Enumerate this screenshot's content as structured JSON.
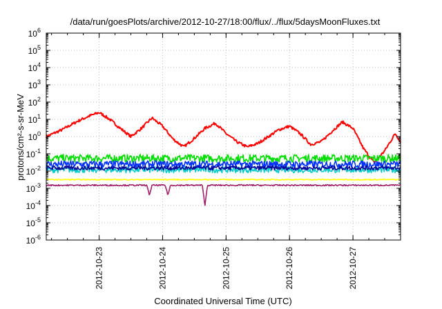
{
  "chart_data": {
    "type": "line",
    "title": "/data/run/goesPlots/archive/2012-10-27/18:00/flux/../flux/5daysMoonFluxes.txt",
    "xlabel": "Coordinated Universal Time (UTC)",
    "ylabel": "protons/cm²-s-sr-MeV",
    "y_scale": "log",
    "ylim": [
      1e-06,
      1000000.0
    ],
    "xlim": [
      "2012-10-22T04:00",
      "2012-10-27T18:00"
    ],
    "x_ticks": [
      "2012-10-23",
      "2012-10-24",
      "2012-10-25",
      "2012-10-26",
      "2012-10-27"
    ],
    "y_ticks": [
      {
        "base": "10",
        "exp": "-6"
      },
      {
        "base": "10",
        "exp": "-5"
      },
      {
        "base": "10",
        "exp": "-4"
      },
      {
        "base": "10",
        "exp": "-3"
      },
      {
        "base": "10",
        "exp": "-2"
      },
      {
        "base": "10",
        "exp": "-1"
      },
      {
        "base": "10",
        "exp": "0"
      },
      {
        "base": "10",
        "exp": "1"
      },
      {
        "base": "10",
        "exp": "2"
      },
      {
        "base": "10",
        "exp": "3"
      },
      {
        "base": "10",
        "exp": "4"
      },
      {
        "base": "10",
        "exp": "5"
      },
      {
        "base": "10",
        "exp": "6"
      }
    ],
    "grid": true,
    "legend": "none",
    "series": [
      {
        "color": "#ff0000",
        "x": [
          "2012-10-22T04:00",
          "2012-10-22T10:00",
          "2012-10-22T16:00",
          "2012-10-22T20:00",
          "2012-10-23T00:00",
          "2012-10-23T04:00",
          "2012-10-23T08:00",
          "2012-10-23T12:00",
          "2012-10-23T16:00",
          "2012-10-23T20:00",
          "2012-10-24T00:00",
          "2012-10-24T04:00",
          "2012-10-24T08:00",
          "2012-10-24T12:00",
          "2012-10-24T16:00",
          "2012-10-24T20:00",
          "2012-10-25T00:00",
          "2012-10-25T04:00",
          "2012-10-25T08:00",
          "2012-10-25T12:00",
          "2012-10-25T16:00",
          "2012-10-25T20:00",
          "2012-10-26T00:00",
          "2012-10-26T04:00",
          "2012-10-26T08:00",
          "2012-10-26T12:00",
          "2012-10-26T16:00",
          "2012-10-26T20:00",
          "2012-10-27T00:00",
          "2012-10-27T04:00",
          "2012-10-27T08:00",
          "2012-10-27T12:00",
          "2012-10-27T16:00",
          "2012-10-27T18:00"
        ],
        "y": [
          1.0,
          2.5,
          8,
          15,
          25,
          10,
          3,
          1.0,
          3,
          12,
          4,
          0.7,
          0.25,
          0.8,
          3,
          6,
          1.5,
          0.5,
          0.25,
          0.4,
          1.0,
          2.5,
          4,
          1.5,
          0.35,
          0.5,
          2,
          7,
          3,
          0.2,
          0.03,
          0.15,
          1.5,
          0.5
        ],
        "noise": 0.08
      },
      {
        "color": "#00dd00",
        "x": [
          "2012-10-22T04:00",
          "2012-10-27T18:00"
        ],
        "y": [
          0.055,
          0.055
        ],
        "noise": 0.22
      },
      {
        "color": "#00cccc",
        "x": [
          "2012-10-22T04:00",
          "2012-10-27T18:00"
        ],
        "y": [
          0.012,
          0.012
        ],
        "noise": 0.18
      },
      {
        "color": "#0033ff",
        "x": [
          "2012-10-22T04:00",
          "2012-10-27T18:00"
        ],
        "y": [
          0.025,
          0.025
        ],
        "noise": 0.2
      },
      {
        "color": "#000099",
        "x": [
          "2012-10-22T04:00",
          "2012-10-27T18:00"
        ],
        "y": [
          0.015,
          0.015
        ],
        "noise": 0.12
      },
      {
        "color": "#ffff00",
        "x": [
          "2012-10-22T04:00",
          "2012-10-27T18:00"
        ],
        "y": [
          0.0032,
          0.0032
        ],
        "noise": 0.03
      },
      {
        "color": "#a0206a",
        "x": [
          "2012-10-22T04:00",
          "2012-10-23T18:00",
          "2012-10-23T19:00",
          "2012-10-23T20:00",
          "2012-10-24T01:00",
          "2012-10-24T02:00",
          "2012-10-24T03:00",
          "2012-10-24T15:00",
          "2012-10-24T16:00",
          "2012-10-24T17:00",
          "2012-10-27T18:00"
        ],
        "y": [
          0.0015,
          0.0015,
          0.0004,
          0.0015,
          0.0015,
          0.0004,
          0.0015,
          0.0015,
          0.0001,
          0.0015,
          0.0015
        ],
        "noise": 0.04
      }
    ]
  }
}
